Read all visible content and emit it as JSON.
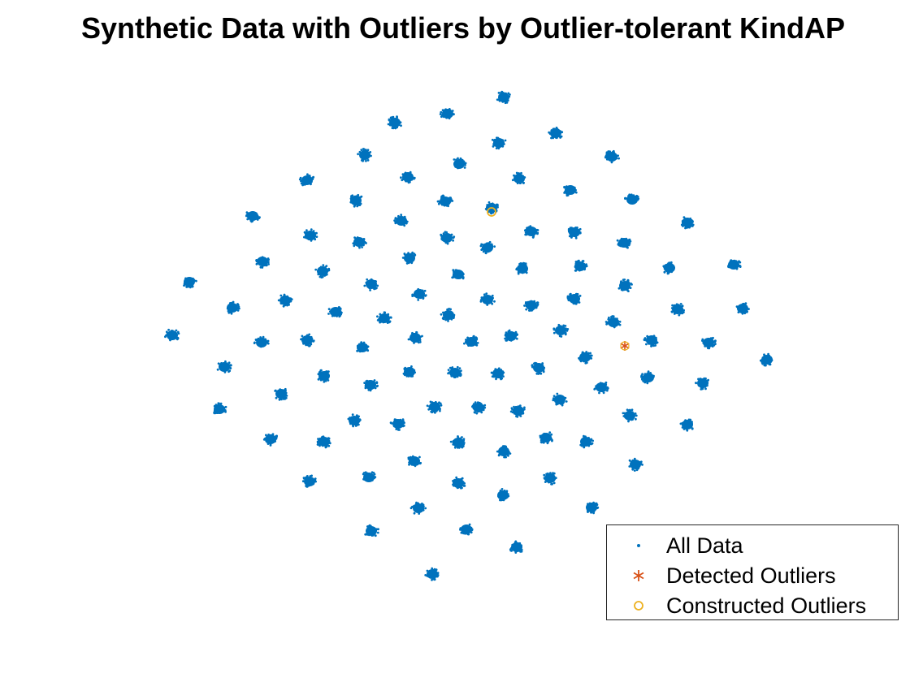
{
  "chart_data": {
    "type": "scatter",
    "title": "Synthetic Data with Outliers by Outlier-tolerant KindAP",
    "xlabel": "",
    "ylabel": "",
    "axes_visible": false,
    "grid": false,
    "legend_position": "bottom-right",
    "cluster_centers": [
      [
        620,
        120
      ],
      [
        551,
        140
      ],
      [
        486,
        151
      ],
      [
        684,
        164
      ],
      [
        614,
        176
      ],
      [
        449,
        191
      ],
      [
        753,
        193
      ],
      [
        565,
        202
      ],
      [
        502,
        218
      ],
      [
        378,
        222
      ],
      [
        639,
        220
      ],
      [
        702,
        234
      ],
      [
        438,
        247
      ],
      [
        548,
        248
      ],
      [
        605,
        256
      ],
      [
        778,
        246
      ],
      [
        311,
        266
      ],
      [
        494,
        272
      ],
      [
        846,
        274
      ],
      [
        382,
        290
      ],
      [
        550,
        293
      ],
      [
        654,
        285
      ],
      [
        707,
        286
      ],
      [
        442,
        298
      ],
      [
        600,
        305
      ],
      [
        768,
        299
      ],
      [
        323,
        322
      ],
      [
        504,
        318
      ],
      [
        903,
        326
      ],
      [
        397,
        334
      ],
      [
        564,
        338
      ],
      [
        643,
        331
      ],
      [
        714,
        328
      ],
      [
        824,
        330
      ],
      [
        233,
        347
      ],
      [
        457,
        350
      ],
      [
        769,
        352
      ],
      [
        516,
        362
      ],
      [
        351,
        370
      ],
      [
        600,
        369
      ],
      [
        654,
        376
      ],
      [
        707,
        368
      ],
      [
        286,
        379
      ],
      [
        413,
        384
      ],
      [
        834,
        381
      ],
      [
        914,
        380
      ],
      [
        473,
        392
      ],
      [
        552,
        388
      ],
      [
        755,
        397
      ],
      [
        212,
        413
      ],
      [
        378,
        419
      ],
      [
        511,
        416
      ],
      [
        629,
        414
      ],
      [
        690,
        407
      ],
      [
        802,
        419
      ],
      [
        322,
        422
      ],
      [
        446,
        428
      ],
      [
        580,
        421
      ],
      [
        872,
        422
      ],
      [
        720,
        440
      ],
      [
        944,
        443
      ],
      [
        276,
        452
      ],
      [
        663,
        453
      ],
      [
        399,
        463
      ],
      [
        504,
        458
      ],
      [
        560,
        459
      ],
      [
        613,
        460
      ],
      [
        798,
        465
      ],
      [
        456,
        474
      ],
      [
        740,
        477
      ],
      [
        865,
        472
      ],
      [
        346,
        485
      ],
      [
        689,
        492
      ],
      [
        270,
        504
      ],
      [
        535,
        501
      ],
      [
        589,
        502
      ],
      [
        638,
        506
      ],
      [
        775,
        512
      ],
      [
        436,
        518
      ],
      [
        490,
        522
      ],
      [
        846,
        523
      ],
      [
        333,
        541
      ],
      [
        399,
        544
      ],
      [
        564,
        545
      ],
      [
        672,
        539
      ],
      [
        721,
        544
      ],
      [
        620,
        556
      ],
      [
        510,
        568
      ],
      [
        782,
        572
      ],
      [
        454,
        588
      ],
      [
        381,
        593
      ],
      [
        564,
        595
      ],
      [
        677,
        589
      ],
      [
        619,
        610
      ],
      [
        515,
        626
      ],
      [
        728,
        625
      ],
      [
        457,
        654
      ],
      [
        574,
        652
      ],
      [
        636,
        674
      ],
      [
        532,
        707
      ]
    ],
    "detected_outliers": [
      [
        769,
        426
      ]
    ],
    "constructed_outliers": [
      [
        605,
        261
      ]
    ],
    "series": [
      {
        "name": "All Data",
        "marker": "dot",
        "color": "#0072BD"
      },
      {
        "name": "Detected Outliers",
        "marker": "asterisk",
        "color": "#D95319"
      },
      {
        "name": "Constructed Outliers",
        "marker": "circle",
        "color": "#EDB120"
      }
    ]
  }
}
